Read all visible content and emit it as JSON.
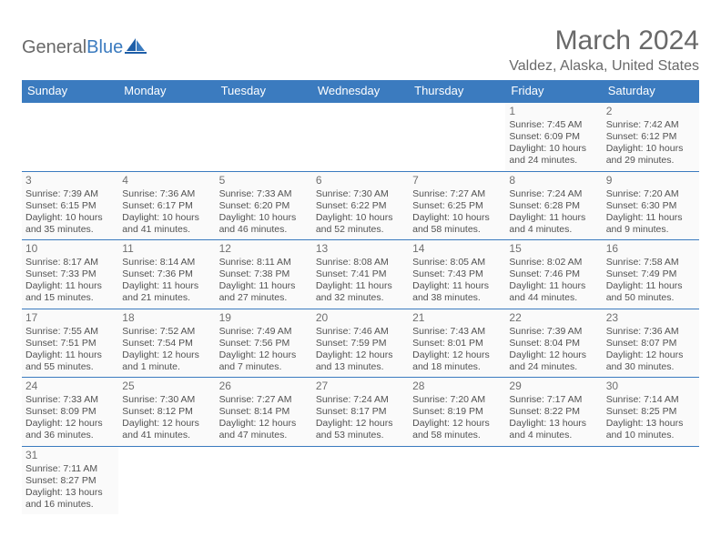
{
  "logo": {
    "part1": "General",
    "part2": "Blue"
  },
  "title": "March 2024",
  "subtitle": "Valdez, Alaska, United States",
  "colors": {
    "header_bg": "#3b7bbf",
    "header_text": "#ffffff",
    "text": "#525252",
    "title_color": "#696969",
    "logo_blue": "#3b7bbf",
    "logo_gray": "#696969",
    "cell_bg": "#fafafa",
    "border": "#3b7bbf"
  },
  "weekdays": [
    "Sunday",
    "Monday",
    "Tuesday",
    "Wednesday",
    "Thursday",
    "Friday",
    "Saturday"
  ],
  "weeks": [
    [
      null,
      null,
      null,
      null,
      null,
      {
        "d": "1",
        "sr": "Sunrise: 7:45 AM",
        "ss": "Sunset: 6:09 PM",
        "dl": "Daylight: 10 hours and 24 minutes."
      },
      {
        "d": "2",
        "sr": "Sunrise: 7:42 AM",
        "ss": "Sunset: 6:12 PM",
        "dl": "Daylight: 10 hours and 29 minutes."
      }
    ],
    [
      {
        "d": "3",
        "sr": "Sunrise: 7:39 AM",
        "ss": "Sunset: 6:15 PM",
        "dl": "Daylight: 10 hours and 35 minutes."
      },
      {
        "d": "4",
        "sr": "Sunrise: 7:36 AM",
        "ss": "Sunset: 6:17 PM",
        "dl": "Daylight: 10 hours and 41 minutes."
      },
      {
        "d": "5",
        "sr": "Sunrise: 7:33 AM",
        "ss": "Sunset: 6:20 PM",
        "dl": "Daylight: 10 hours and 46 minutes."
      },
      {
        "d": "6",
        "sr": "Sunrise: 7:30 AM",
        "ss": "Sunset: 6:22 PM",
        "dl": "Daylight: 10 hours and 52 minutes."
      },
      {
        "d": "7",
        "sr": "Sunrise: 7:27 AM",
        "ss": "Sunset: 6:25 PM",
        "dl": "Daylight: 10 hours and 58 minutes."
      },
      {
        "d": "8",
        "sr": "Sunrise: 7:24 AM",
        "ss": "Sunset: 6:28 PM",
        "dl": "Daylight: 11 hours and 4 minutes."
      },
      {
        "d": "9",
        "sr": "Sunrise: 7:20 AM",
        "ss": "Sunset: 6:30 PM",
        "dl": "Daylight: 11 hours and 9 minutes."
      }
    ],
    [
      {
        "d": "10",
        "sr": "Sunrise: 8:17 AM",
        "ss": "Sunset: 7:33 PM",
        "dl": "Daylight: 11 hours and 15 minutes."
      },
      {
        "d": "11",
        "sr": "Sunrise: 8:14 AM",
        "ss": "Sunset: 7:36 PM",
        "dl": "Daylight: 11 hours and 21 minutes."
      },
      {
        "d": "12",
        "sr": "Sunrise: 8:11 AM",
        "ss": "Sunset: 7:38 PM",
        "dl": "Daylight: 11 hours and 27 minutes."
      },
      {
        "d": "13",
        "sr": "Sunrise: 8:08 AM",
        "ss": "Sunset: 7:41 PM",
        "dl": "Daylight: 11 hours and 32 minutes."
      },
      {
        "d": "14",
        "sr": "Sunrise: 8:05 AM",
        "ss": "Sunset: 7:43 PM",
        "dl": "Daylight: 11 hours and 38 minutes."
      },
      {
        "d": "15",
        "sr": "Sunrise: 8:02 AM",
        "ss": "Sunset: 7:46 PM",
        "dl": "Daylight: 11 hours and 44 minutes."
      },
      {
        "d": "16",
        "sr": "Sunrise: 7:58 AM",
        "ss": "Sunset: 7:49 PM",
        "dl": "Daylight: 11 hours and 50 minutes."
      }
    ],
    [
      {
        "d": "17",
        "sr": "Sunrise: 7:55 AM",
        "ss": "Sunset: 7:51 PM",
        "dl": "Daylight: 11 hours and 55 minutes."
      },
      {
        "d": "18",
        "sr": "Sunrise: 7:52 AM",
        "ss": "Sunset: 7:54 PM",
        "dl": "Daylight: 12 hours and 1 minute."
      },
      {
        "d": "19",
        "sr": "Sunrise: 7:49 AM",
        "ss": "Sunset: 7:56 PM",
        "dl": "Daylight: 12 hours and 7 minutes."
      },
      {
        "d": "20",
        "sr": "Sunrise: 7:46 AM",
        "ss": "Sunset: 7:59 PM",
        "dl": "Daylight: 12 hours and 13 minutes."
      },
      {
        "d": "21",
        "sr": "Sunrise: 7:43 AM",
        "ss": "Sunset: 8:01 PM",
        "dl": "Daylight: 12 hours and 18 minutes."
      },
      {
        "d": "22",
        "sr": "Sunrise: 7:39 AM",
        "ss": "Sunset: 8:04 PM",
        "dl": "Daylight: 12 hours and 24 minutes."
      },
      {
        "d": "23",
        "sr": "Sunrise: 7:36 AM",
        "ss": "Sunset: 8:07 PM",
        "dl": "Daylight: 12 hours and 30 minutes."
      }
    ],
    [
      {
        "d": "24",
        "sr": "Sunrise: 7:33 AM",
        "ss": "Sunset: 8:09 PM",
        "dl": "Daylight: 12 hours and 36 minutes."
      },
      {
        "d": "25",
        "sr": "Sunrise: 7:30 AM",
        "ss": "Sunset: 8:12 PM",
        "dl": "Daylight: 12 hours and 41 minutes."
      },
      {
        "d": "26",
        "sr": "Sunrise: 7:27 AM",
        "ss": "Sunset: 8:14 PM",
        "dl": "Daylight: 12 hours and 47 minutes."
      },
      {
        "d": "27",
        "sr": "Sunrise: 7:24 AM",
        "ss": "Sunset: 8:17 PM",
        "dl": "Daylight: 12 hours and 53 minutes."
      },
      {
        "d": "28",
        "sr": "Sunrise: 7:20 AM",
        "ss": "Sunset: 8:19 PM",
        "dl": "Daylight: 12 hours and 58 minutes."
      },
      {
        "d": "29",
        "sr": "Sunrise: 7:17 AM",
        "ss": "Sunset: 8:22 PM",
        "dl": "Daylight: 13 hours and 4 minutes."
      },
      {
        "d": "30",
        "sr": "Sunrise: 7:14 AM",
        "ss": "Sunset: 8:25 PM",
        "dl": "Daylight: 13 hours and 10 minutes."
      }
    ],
    [
      {
        "d": "31",
        "sr": "Sunrise: 7:11 AM",
        "ss": "Sunset: 8:27 PM",
        "dl": "Daylight: 13 hours and 16 minutes."
      },
      null,
      null,
      null,
      null,
      null,
      null
    ]
  ]
}
